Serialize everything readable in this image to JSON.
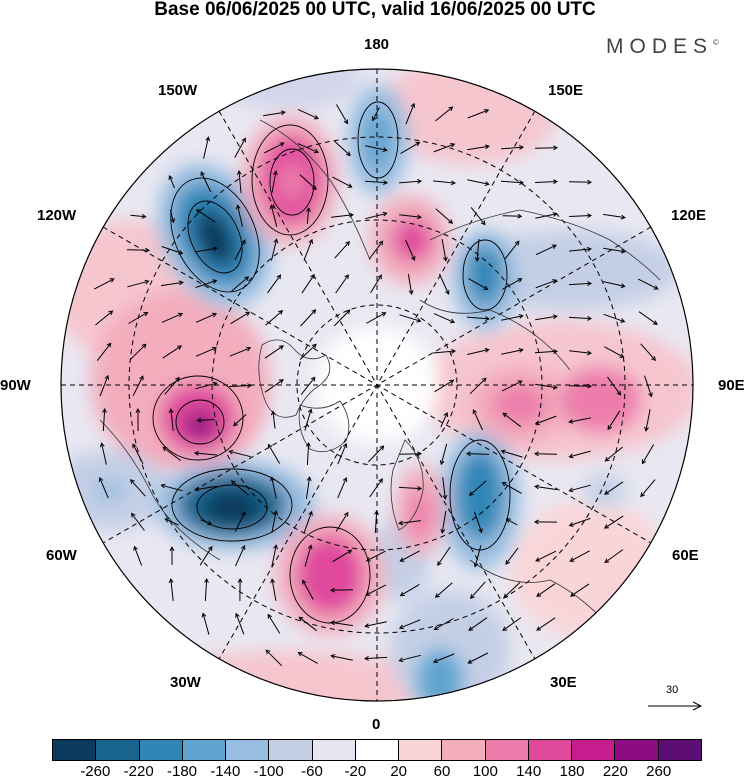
{
  "title": "Base 06/06/2025 00 UTC, valid 16/06/2025 00 UTC",
  "brand": "MODES",
  "brand_mark": "©",
  "labels": {
    "lon_180": "180",
    "lon_150w": "150W",
    "lon_150e": "150E",
    "lon_120w": "120W",
    "lon_120e": "120E",
    "lon_90w": "90W",
    "lon_90e": "90E",
    "lon_60w": "60W",
    "lon_60e": "60E",
    "lon_30w": "30W",
    "lon_30e": "30E",
    "lon_0": "0"
  },
  "reference_vector": "30",
  "colorbar": {
    "colors": [
      "#0b3a5c",
      "#17648e",
      "#2f86b7",
      "#5fa3cf",
      "#97bde1",
      "#c4cfe6",
      "#e6e5f1",
      "#ffffff",
      "#f9d5d8",
      "#f3adbd",
      "#ec7dab",
      "#e0489c",
      "#c51d8d",
      "#8e0c82",
      "#5c0e75"
    ],
    "tick_labels": [
      "-260",
      "-220",
      "-180",
      "-140",
      "-100",
      "-60",
      "-20",
      "20",
      "60",
      "100",
      "140",
      "180",
      "220",
      "260"
    ]
  }
}
